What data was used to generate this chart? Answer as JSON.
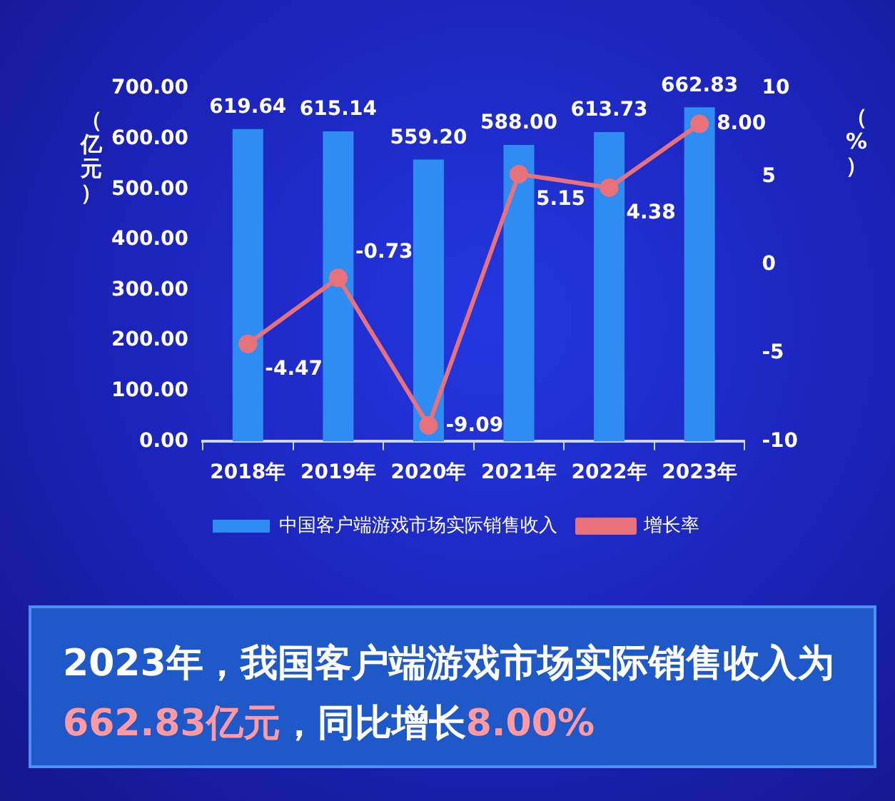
{
  "chart_data": {
    "type": "bar",
    "categories": [
      "2018年",
      "2019年",
      "2020年",
      "2021年",
      "2022年",
      "2023年"
    ],
    "series": [
      {
        "name": "中国客户端游戏市场实际销售收入",
        "color": "#2f8cf2",
        "values": [
          619.64,
          615.14,
          559.2,
          588.0,
          613.73,
          662.83
        ],
        "value_labels": [
          "619.64",
          "615.14",
          "559.20",
          "588.00",
          "613.73",
          "662.83"
        ]
      },
      {
        "name": "增长率",
        "type": "line",
        "axis": "y2",
        "color": "#e8727c",
        "values": [
          -4.47,
          -0.73,
          -9.09,
          5.15,
          4.38,
          8.0
        ],
        "value_labels": [
          "-4.47",
          "-0.73",
          "-9.09",
          "5.15",
          "4.38",
          "8.00"
        ]
      }
    ],
    "ylabel": "（亿元）",
    "y2label": "（%）",
    "ylim": [
      0,
      700
    ],
    "yticks": [
      {
        "value": 0,
        "label": "0.00"
      },
      {
        "value": 100,
        "label": "100.00"
      },
      {
        "value": 200,
        "label": "200.00"
      },
      {
        "value": 300,
        "label": "300.00"
      },
      {
        "value": 400,
        "label": "400.00"
      },
      {
        "value": 500,
        "label": "500.00"
      },
      {
        "value": 600,
        "label": "600.00"
      },
      {
        "value": 700,
        "label": "700.00"
      }
    ],
    "y2lim": [
      -10,
      10
    ],
    "y2ticks": [
      -10,
      -5,
      0,
      5,
      10
    ],
    "grid": false,
    "legend": "bottom",
    "marker": "circle",
    "line_style": "solid",
    "annotations": [
      "2023年，我国客户端游戏市场实际销售收入为",
      "662.83亿元",
      "，同比增长",
      "8.00%"
    ]
  }
}
